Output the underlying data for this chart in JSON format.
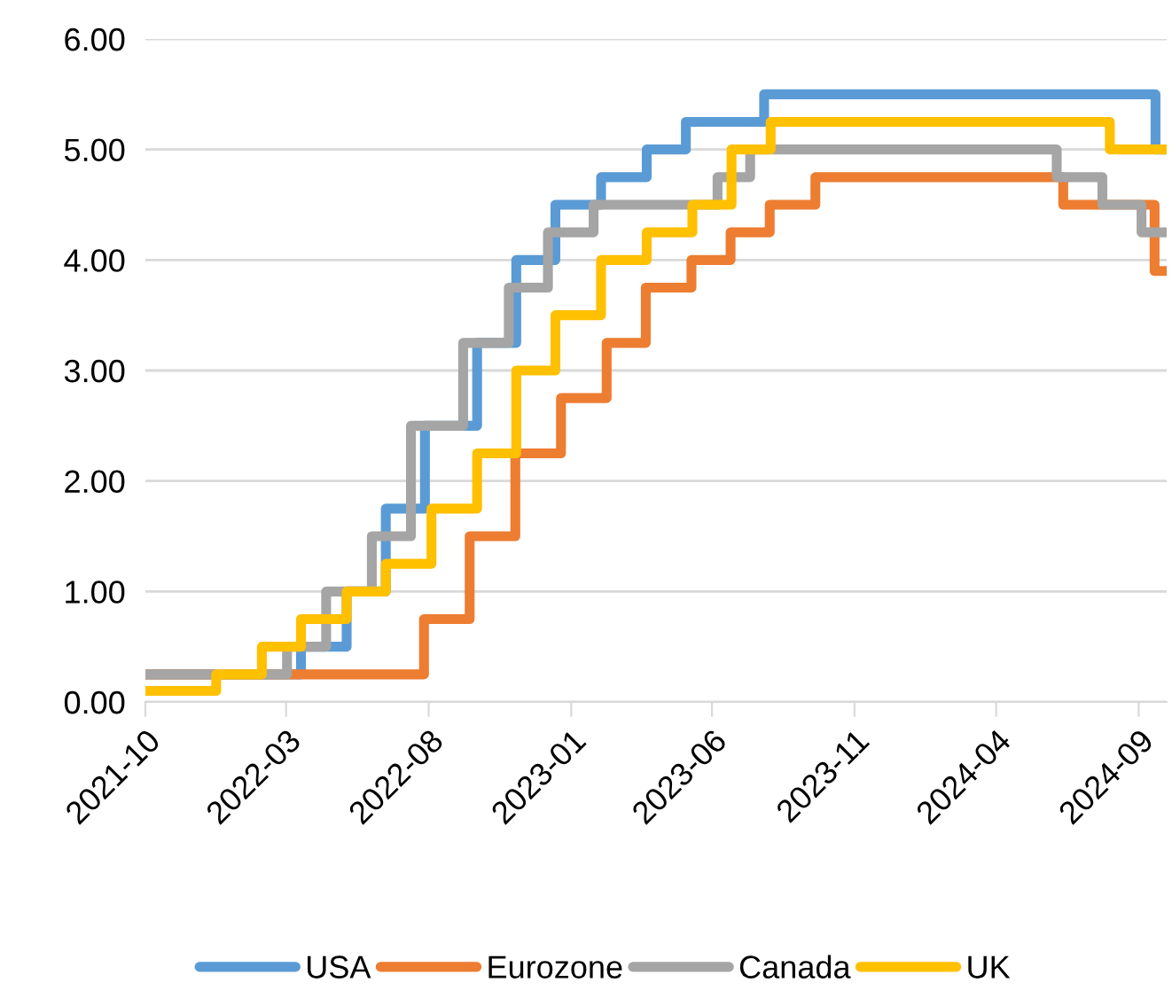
{
  "chart_data": {
    "type": "step",
    "xlim": [
      "2021-10-01",
      "2024-10-01"
    ],
    "xticks": [
      {
        "value": "2021-10-01",
        "label": "2021-10"
      },
      {
        "value": "2022-03-01",
        "label": "2022-03"
      },
      {
        "value": "2022-08-01",
        "label": "2022-08"
      },
      {
        "value": "2023-01-01",
        "label": "2023-01"
      },
      {
        "value": "2023-06-01",
        "label": "2023-06"
      },
      {
        "value": "2023-11-01",
        "label": "2023-11"
      },
      {
        "value": "2024-04-01",
        "label": "2024-04"
      },
      {
        "value": "2024-09-01",
        "label": "2024-09"
      }
    ],
    "ylim": [
      0,
      6
    ],
    "yticks": [
      {
        "value": 0,
        "label": "0.00"
      },
      {
        "value": 1,
        "label": "1.00"
      },
      {
        "value": 2,
        "label": "2.00"
      },
      {
        "value": 3,
        "label": "3.00"
      },
      {
        "value": 4,
        "label": "4.00"
      },
      {
        "value": 5,
        "label": "5.00"
      },
      {
        "value": 6,
        "label": "6.00"
      }
    ],
    "grid": "y",
    "legend": "bottom",
    "marker": "none",
    "line_style": "solid",
    "series": [
      {
        "name": "USA",
        "color": "#5b9bd5",
        "x": [
          "2021-10-01",
          "2022-03-17",
          "2022-05-05",
          "2022-06-16",
          "2022-07-28",
          "2022-09-22",
          "2022-11-03",
          "2022-12-15",
          "2023-02-02",
          "2023-03-23",
          "2023-05-04",
          "2023-07-27",
          "2024-09-19",
          "2024-09-30"
        ],
        "values": [
          0.25,
          0.5,
          1.0,
          1.75,
          2.5,
          3.25,
          4.0,
          4.5,
          4.75,
          5.0,
          5.25,
          5.5,
          5.0,
          5.0
        ]
      },
      {
        "name": "Eurozone",
        "color": "#ed7d31",
        "x": [
          "2021-10-01",
          "2022-07-27",
          "2022-09-14",
          "2022-11-02",
          "2022-12-21",
          "2023-02-08",
          "2023-03-22",
          "2023-05-10",
          "2023-06-21",
          "2023-08-02",
          "2023-09-20",
          "2024-06-12",
          "2024-09-18",
          "2024-09-30"
        ],
        "values": [
          0.25,
          0.75,
          1.5,
          2.25,
          2.75,
          3.25,
          3.75,
          4.0,
          4.25,
          4.5,
          4.75,
          4.5,
          3.9,
          3.9
        ]
      },
      {
        "name": "Canada",
        "color": "#a5a5a5",
        "x": [
          "2021-10-01",
          "2022-03-02",
          "2022-04-13",
          "2022-06-01",
          "2022-07-13",
          "2022-09-07",
          "2022-10-26",
          "2022-12-07",
          "2023-01-25",
          "2023-06-07",
          "2023-07-12",
          "2024-06-05",
          "2024-07-24",
          "2024-09-04",
          "2024-09-30"
        ],
        "values": [
          0.25,
          0.5,
          1.0,
          1.5,
          2.5,
          3.25,
          3.75,
          4.25,
          4.5,
          4.75,
          5.0,
          4.75,
          4.5,
          4.25,
          4.25
        ]
      },
      {
        "name": "UK",
        "color": "#ffc000",
        "x": [
          "2021-10-01",
          "2021-12-16",
          "2022-02-03",
          "2022-03-17",
          "2022-05-05",
          "2022-06-16",
          "2022-08-04",
          "2022-09-22",
          "2022-11-03",
          "2022-12-15",
          "2023-02-02",
          "2023-03-23",
          "2023-05-11",
          "2023-06-22",
          "2023-08-03",
          "2024-08-01",
          "2024-09-30"
        ],
        "values": [
          0.1,
          0.25,
          0.5,
          0.75,
          1.0,
          1.25,
          1.75,
          2.25,
          3.0,
          3.5,
          4.0,
          4.25,
          4.5,
          5.0,
          5.25,
          5.0,
          5.0
        ]
      }
    ]
  }
}
